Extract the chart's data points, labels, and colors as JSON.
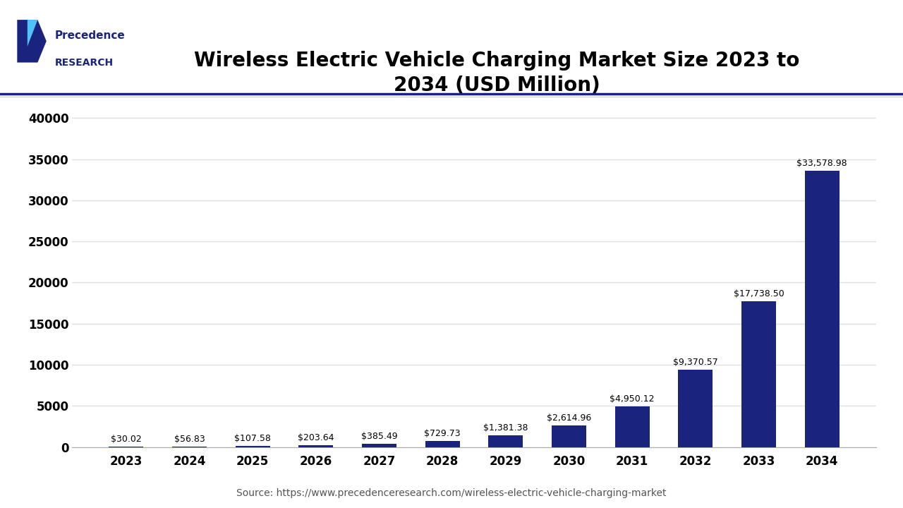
{
  "title": "Wireless Electric Vehicle Charging Market Size 2023 to\n2034 (USD Million)",
  "years": [
    "2023",
    "2024",
    "2025",
    "2026",
    "2027",
    "2028",
    "2029",
    "2030",
    "2031",
    "2032",
    "2033",
    "2034"
  ],
  "values": [
    30.02,
    56.83,
    107.58,
    203.64,
    385.49,
    729.73,
    1381.38,
    2614.96,
    4950.12,
    9370.57,
    17738.5,
    33578.98
  ],
  "labels": [
    "$30.02",
    "$56.83",
    "$107.58",
    "$203.64",
    "$385.49",
    "$729.73",
    "$1,381.38",
    "$2,614.96",
    "$4,950.12",
    "$9,370.57",
    "$17,738.50",
    "$33,578.98"
  ],
  "bar_color": "#1a237e",
  "background_color": "#ffffff",
  "plot_bg_color": "#ffffff",
  "yticks": [
    0,
    5000,
    10000,
    15000,
    20000,
    25000,
    30000,
    35000,
    40000
  ],
  "ylim": [
    0,
    42000
  ],
  "source_text": "Source: https://www.precedenceresearch.com/wireless-electric-vehicle-charging-market",
  "title_fontsize": 20,
  "label_fontsize": 9,
  "tick_fontsize": 12,
  "source_fontsize": 10,
  "header_line_color": "#1a237e",
  "grid_color": "#e0e0e0"
}
